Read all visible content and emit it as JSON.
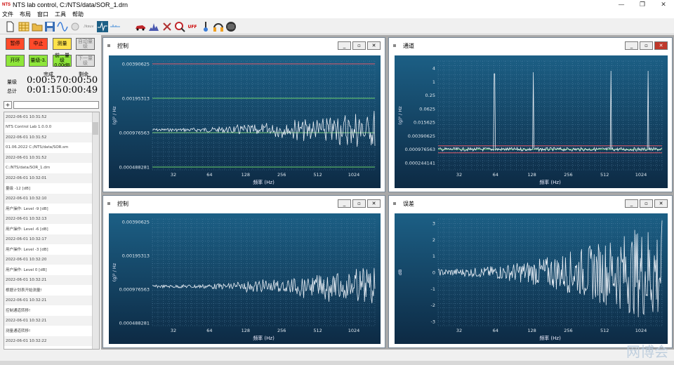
{
  "window": {
    "title": "NTS lab control, C:/NTS/data/SOR_1.drn",
    "logo": "NTS",
    "minimize": "—",
    "maximize": "❐",
    "close": "✕"
  },
  "menu": [
    "文件",
    "布局",
    "窗口",
    "工具",
    "帮助"
  ],
  "toolbar": {
    "icons": [
      "new-doc-icon",
      "grid-icon",
      "folder-open-icon",
      "save-icon",
      "sine-icon",
      "settings-icon",
      "sweep-icon",
      "pulse-icon",
      "ruler-icon",
      "car-icon",
      "spectrum-icon",
      "tools-icon",
      "zoom-icon",
      "uff-icon",
      "thermometer-icon",
      "headphones-icon",
      "tape-icon"
    ],
    "text_labels": {
      "sweep": "♪ksuv",
      "uff": "UFF"
    }
  },
  "controls": {
    "pause": "暂停",
    "abort": "中止",
    "measure": "测量",
    "auto_level": "自动量级",
    "start": "开环",
    "level": "量级-3.",
    "prev_level": "前一量级",
    "prev_level_val": "0.00dB",
    "next_level": "下一量级"
  },
  "times": {
    "done_label": "完成",
    "remain_label": "剩余",
    "level_label": "量级",
    "total_label": "总计",
    "level_done": "0:00:57",
    "level_remain": "0:00:50",
    "total_done": "0:01:15",
    "total_remain": "0:00:49"
  },
  "log": [
    "2022-06-01 10:31:52",
    "NTS Control Lab 1.0.0.0",
    "2022-06-01 10:31:52",
    "01.06.2022 C:/NTS/data/SOR.sm",
    "2022-06-01 10:31:52",
    "C:/NTS/data/SOR_1.drn",
    "2022-06-01 10:32:01",
    "量级                -12 [dB]",
    "2022-06-01 10:32:10",
    "用户操作: Level          -9 [dB]",
    "2022-06-01 10:32:13",
    "用户操作: Level          -6 [dB]",
    "2022-06-01 10:32:17",
    "用户操作: Level          -3 [dB]",
    "2022-06-01 10:32:20",
    "用户操作: Level          0 [dB]",
    "2022-06-01 10:32:21",
    "根据计划表开始测量!",
    "2022-06-01 10:32:21",
    "控制通道转移!",
    "2022-06-01 10:32:21",
    "测量通道转移!",
    "2022-06-01 10:32:22"
  ],
  "panels": [
    {
      "title": "控制",
      "ylabel": "(g)² / Hz",
      "xlabel": "频率 (Hz)",
      "yticks": [
        "0.00390625",
        "0.00195313",
        "0.000976563",
        "0.000488281"
      ],
      "xticks": [
        "32",
        "64",
        "128",
        "256",
        "512",
        "1024"
      ]
    },
    {
      "title": "通道",
      "ylabel": "(g)² / Hz",
      "xlabel": "频率 (Hz)",
      "yticks": [
        "4",
        "1",
        "0.25",
        "0.0625",
        "0.015625",
        "0.00390625",
        "0.000976563",
        "0.000244141"
      ],
      "xticks": [
        "32",
        "64",
        "128",
        "256",
        "512",
        "1024"
      ]
    },
    {
      "title": "控制",
      "ylabel": "(g)² / Hz",
      "xlabel": "频率 (Hz)",
      "yticks": [
        "0.00390625",
        "0.00195313",
        "0.000976563",
        "0.000488281"
      ],
      "xticks": [
        "32",
        "64",
        "128",
        "256",
        "512",
        "1024"
      ]
    },
    {
      "title": "误差",
      "ylabel": "dB",
      "xlabel": "频率 (Hz)",
      "yticks": [
        "3",
        "2",
        "1",
        "0",
        "-1",
        "-2",
        "-3"
      ],
      "xticks": [
        "32",
        "64",
        "128",
        "256",
        "512",
        "1024"
      ]
    }
  ],
  "watermark": "网博会",
  "colors": {
    "plot_top": "#1c5f85",
    "plot_bottom": "#0d2a44",
    "upper_abort": "#e05a6a",
    "alarm": "#6ed36e",
    "trace": "#e8eef5",
    "profile": "#7fd17f"
  }
}
